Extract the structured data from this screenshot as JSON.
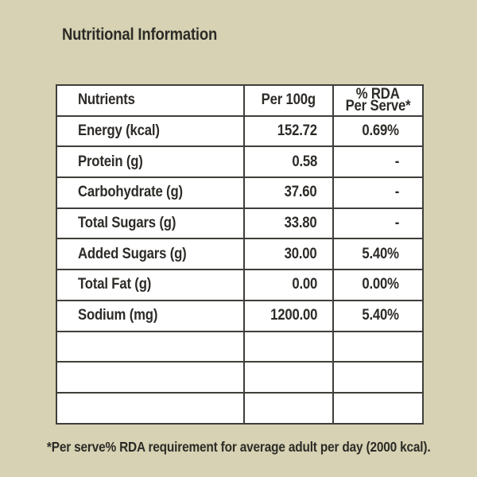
{
  "page": {
    "title": "Nutritional Information",
    "footnote": "*Per serve% RDA requirement for average adult per day (2000 kcal).",
    "colors": {
      "background": "#d6d2b3",
      "table_background": "#ffffff",
      "border": "#403e39",
      "text": "#2d2b27"
    }
  },
  "table": {
    "headers": {
      "nutrients": "Nutrients",
      "per_100g": "Per 100g",
      "rda_line1": "% RDA",
      "rda_line2": "Per Serve*"
    },
    "rows": [
      {
        "nutrient": "Energy (kcal)",
        "per_100g": "152.72",
        "rda_per_serve": "0.69%"
      },
      {
        "nutrient": "Protein (g)",
        "per_100g": "0.58",
        "rda_per_serve": "-"
      },
      {
        "nutrient": "Carbohydrate (g)",
        "per_100g": "37.60",
        "rda_per_serve": "-"
      },
      {
        "nutrient": "Total Sugars (g)",
        "per_100g": "33.80",
        "rda_per_serve": "-"
      },
      {
        "nutrient": "Added Sugars (g)",
        "per_100g": "30.00",
        "rda_per_serve": "5.40%"
      },
      {
        "nutrient": "Total Fat (g)",
        "per_100g": "0.00",
        "rda_per_serve": "0.00%"
      },
      {
        "nutrient": "Sodium (mg)",
        "per_100g": "1200.00",
        "rda_per_serve": "5.40%"
      }
    ],
    "empty_row_count": 3
  }
}
